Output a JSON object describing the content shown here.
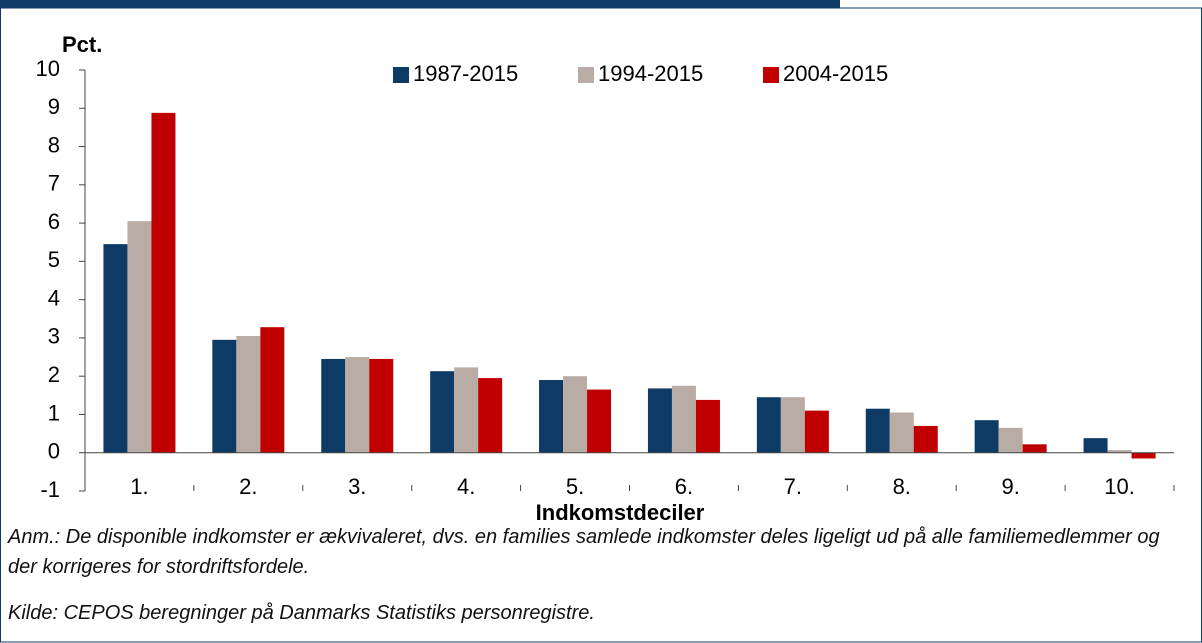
{
  "chart_data": {
    "type": "bar",
    "y_label": "Pct.",
    "x_label": "Indkomstdeciler",
    "categories": [
      "1.",
      "2.",
      "3.",
      "4.",
      "5.",
      "6.",
      "7.",
      "8.",
      "9.",
      "10."
    ],
    "series": [
      {
        "name": "1987-2015",
        "color": "#0e3a66",
        "values": [
          5.45,
          2.95,
          2.45,
          2.13,
          1.9,
          1.68,
          1.45,
          1.15,
          0.85,
          0.38
        ]
      },
      {
        "name": "1994-2015",
        "color": "#b9aca4",
        "values": [
          6.05,
          3.05,
          2.5,
          2.23,
          2.0,
          1.75,
          1.45,
          1.05,
          0.65,
          0.07
        ]
      },
      {
        "name": "2004-2015",
        "color": "#c00000",
        "values": [
          8.88,
          3.28,
          2.45,
          1.95,
          1.65,
          1.38,
          1.1,
          0.7,
          0.22,
          -0.15
        ]
      }
    ],
    "ylim": [
      -1,
      10
    ],
    "yticks": [
      -1,
      0,
      1,
      2,
      3,
      4,
      5,
      6,
      7,
      8,
      9,
      10
    ],
    "legend": "top",
    "note": "Anm.: De disponible indkomster er ækvivaleret, dvs. en families samlede indkomster deles ligeligt ud på alle familiemedlemmer og der korrigeres for stordriftsfordele.",
    "source": "Kilde: CEPOS beregninger på Danmarks Statistiks personregistre."
  }
}
